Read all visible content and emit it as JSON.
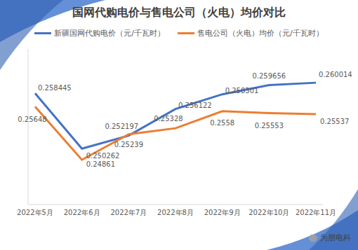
{
  "chart_data": {
    "type": "line",
    "title": "国网代购电价与售电公司（火电）均价对比",
    "categories": [
      "2022年5月",
      "2022年6月",
      "2022年7月",
      "2022年8月",
      "2022年9月",
      "2022年10月",
      "2022年11月"
    ],
    "series": [
      {
        "name": "新疆国网代购电价（元/千瓦时）",
        "color": "#4472c4",
        "values": [
          0.258445,
          0.250262,
          0.252197,
          0.256122,
          0.258301,
          0.259656,
          0.260014
        ]
      },
      {
        "name": "售电公司（火电）均价（元/千瓦时）",
        "color": "#ed7d31",
        "values": [
          0.25648,
          0.24861,
          0.25239,
          0.25328,
          0.2558,
          0.25553,
          0.25537
        ]
      }
    ],
    "ylim": [
      0.242,
      0.265
    ],
    "yticks": [
      0.242,
      0.265
    ],
    "grid": false,
    "legend": "top",
    "data_labels": true,
    "tick_labels": "x",
    "marker": "none",
    "annotations": [
      "为朋电科"
    ]
  }
}
